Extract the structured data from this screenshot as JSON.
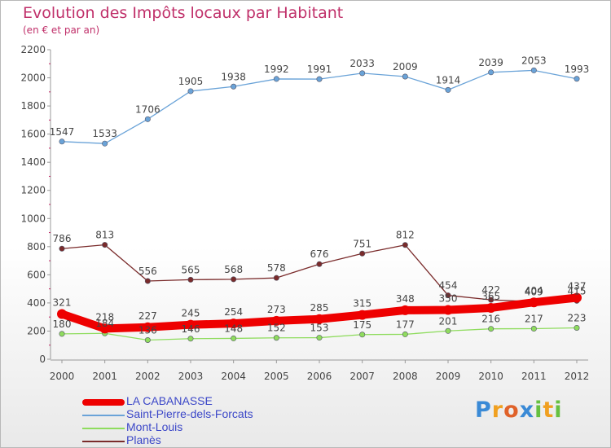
{
  "header": {
    "title": "Evolution des Impôts locaux par Habitant",
    "subtitle": "(en € et par an)"
  },
  "logo": {
    "text": "Proxiti"
  },
  "chart_data": {
    "type": "line",
    "title": "Evolution des Impôts locaux par Habitant",
    "subtitle": "(en € et par an)",
    "x": [
      "2000",
      "2001",
      "2002",
      "2003",
      "2004",
      "2005",
      "2006",
      "2007",
      "2008",
      "2009",
      "2010",
      "2011",
      "2012"
    ],
    "ylim": [
      0,
      2200
    ],
    "yticks": [
      "0",
      "200",
      "400",
      "600",
      "800",
      "1000",
      "1200",
      "1400",
      "1600",
      "1800",
      "2000",
      "2200"
    ],
    "grid": false,
    "legend_position": "bottom-left",
    "series": [
      {
        "name": "Saint-Pierre-dels-Forcats",
        "color": "#6aa3d8",
        "values": [
          1547,
          1533,
          1706,
          1905,
          1938,
          1992,
          1991,
          2033,
          2009,
          1914,
          2039,
          2053,
          1993
        ],
        "labels": [
          "1547",
          "1533",
          "1706",
          "1905",
          "1938",
          "1992",
          "1991",
          "2033",
          "2009",
          "1914",
          "2039",
          "2053",
          "1993"
        ]
      },
      {
        "name": "Planès",
        "color": "#7a2b2b",
        "values": [
          786,
          813,
          556,
          565,
          568,
          578,
          676,
          751,
          812,
          454,
          422,
          409,
          415
        ],
        "labels": [
          "786",
          "813",
          "556",
          "565",
          "568",
          "578",
          "676",
          "751",
          "812",
          "454",
          "422",
          "409",
          "415"
        ]
      },
      {
        "name": "Mont-Louis",
        "color": "#8fdc5e",
        "values": [
          180,
          184,
          136,
          146,
          148,
          152,
          153,
          175,
          177,
          201,
          216,
          217,
          223
        ],
        "labels": [
          "180",
          "184",
          "136",
          "146",
          "148",
          "152",
          "153",
          "175",
          "177",
          "201",
          "216",
          "217",
          "223"
        ]
      },
      {
        "name": "LA CABANASSE",
        "color": "#ee0000",
        "values": [
          321,
          218,
          227,
          245,
          254,
          273,
          285,
          315,
          348,
          350,
          365,
          404,
          437
        ],
        "labels": [
          "321",
          "218",
          "227",
          "245",
          "254",
          "273",
          "285",
          "315",
          "348",
          "350",
          "365",
          "404",
          "437"
        ]
      }
    ]
  }
}
